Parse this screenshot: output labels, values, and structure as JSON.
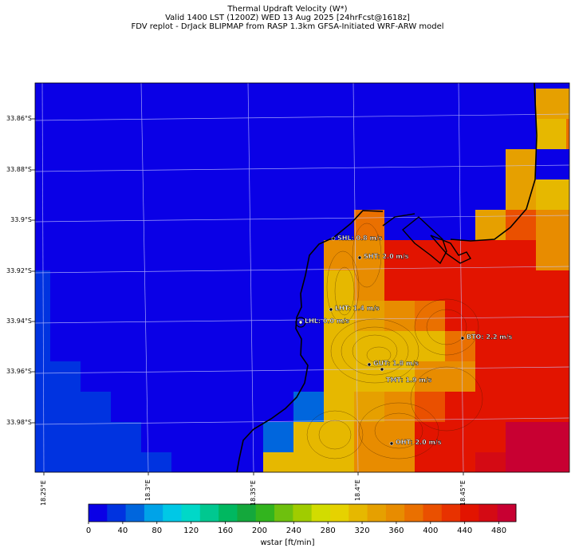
{
  "title": {
    "line1": "Thermal Updraft Velocity (W*)",
    "line2": "Valid 1400 LST (1200Z) WED 13 Aug 2025 [24hrFcst@1618z]",
    "line3": "FDV replot - DrJack BLIPMAP from RASP 1.3km GFSA-Initiated WRF-ARW model"
  },
  "lat_labels": [
    "33.86°S",
    "33.88°S",
    "33.9°S",
    "33.92°S",
    "33.94°S",
    "33.96°S",
    "33.98°S"
  ],
  "lon_labels": [
    "18.25°E",
    "18.3°E",
    "18.35°E",
    "18.4°E",
    "18.45°E"
  ],
  "stations": [
    {
      "id": "SHL",
      "label": "SHL: 0.8 m/s"
    },
    {
      "id": "SHT",
      "label": "SHT: 2.0 m/s"
    },
    {
      "id": "LHT",
      "label": "LHT: 1.4 m/s"
    },
    {
      "id": "LHL",
      "label": "LHL: 0.0 m/s"
    },
    {
      "id": "BTO",
      "label": "BTO: 2.2 m/s"
    },
    {
      "id": "GUT",
      "label": "GUT: 1.8 m/s"
    },
    {
      "id": "TMT",
      "label": "TMT: 1.9 m/s"
    },
    {
      "id": "OHT",
      "label": "OHT: 2.0 m/s"
    }
  ],
  "colorbar": {
    "label": "wstar [ft/min]",
    "ticks": [
      "0",
      "40",
      "80",
      "120",
      "160",
      "200",
      "240",
      "280",
      "320",
      "360",
      "400",
      "440",
      "480"
    ],
    "colors": [
      "#0a00e6",
      "#0033e0",
      "#0066dd",
      "#00a3e8",
      "#00c8e6",
      "#00d8c8",
      "#00c890",
      "#00b860",
      "#14a83c",
      "#32b41e",
      "#6ec00e",
      "#a0cc00",
      "#d2dc00",
      "#e6d200",
      "#e6b800",
      "#e6a000",
      "#e88c00",
      "#ea7000",
      "#ea5000",
      "#e83200",
      "#e21400",
      "#d40a14",
      "#c80032"
    ]
  },
  "colors": {
    "land_line": "#000000",
    "grid": "#c8c8ff"
  }
}
